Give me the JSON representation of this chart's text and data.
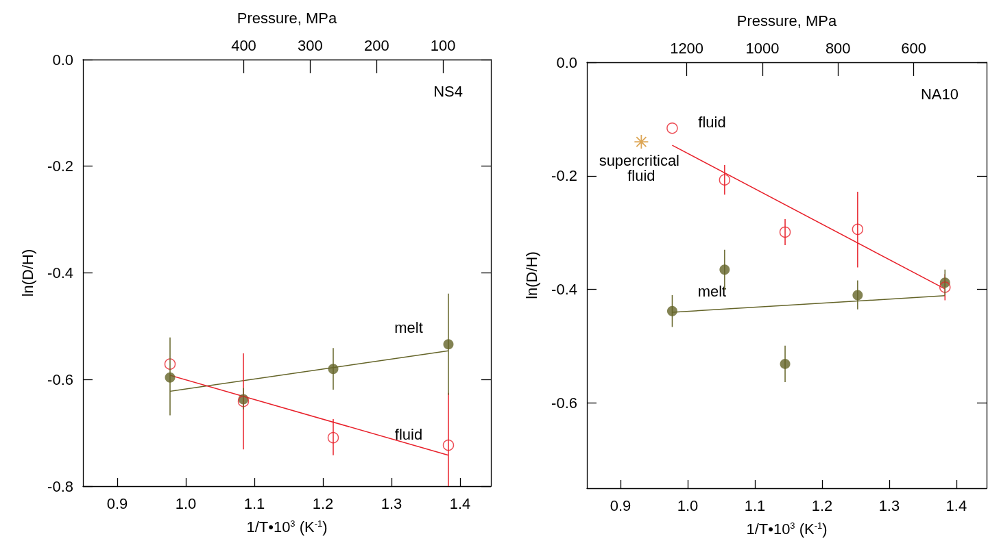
{
  "chart_data": [
    {
      "type": "scatter",
      "title": "NS4",
      "xlabel": "1/T•10$^{3}$ (K$^{-1}$)",
      "ylabel": "ln(D/H)",
      "x2label": "Pressure, MPa",
      "xlim": [
        0.85,
        1.445
      ],
      "xticks": [
        0.9,
        {
          "value": 1.0,
          "label": "1.0"
        },
        1.1,
        1.2,
        1.3,
        1.4
      ],
      "x2lim": [
        642,
        28
      ],
      "x2ticks": [
        400,
        300,
        200,
        100
      ],
      "ylim": [
        -0.8,
        0
      ],
      "yticks": [
        {
          "value": 0,
          "label": "0.0"
        },
        -0.2,
        -0.4,
        -0.6,
        -0.8
      ],
      "grid": false,
      "legend": false,
      "series": [
        {
          "type": "scatter",
          "color": "#646428",
          "marker": "circle",
          "x": [
            0.977,
            1.084,
            1.215,
            1.383
          ],
          "values": [
            -0.596,
            -0.637,
            -0.58,
            -0.534
          ],
          "errors": [
            [
              -0.667,
              -0.521
            ],
            [
              -0.656,
              -0.616
            ],
            [
              -0.619,
              -0.541
            ],
            [
              -0.629,
              -0.439
            ]
          ]
        },
        {
          "type": "scatter",
          "color": "#e8202a",
          "marker": "circle",
          "x": [
            0.977,
            1.084,
            1.215,
            1.383
          ],
          "values": [
            -0.571,
            -0.641,
            -0.709,
            -0.723
          ],
          "errors": [
            null,
            [
              -0.731,
              -0.551
            ],
            [
              -0.742,
              -0.674
            ],
            [
              -0.8,
              -0.625
            ]
          ]
        },
        {
          "type": "line",
          "name": "melt",
          "color": "#646428",
          "marker": "none",
          "line_style": "solid",
          "x": [
            0.977,
            1.383
          ],
          "values": [
            -0.622,
            -0.546
          ]
        },
        {
          "type": "line",
          "name": "fluid",
          "color": "#e8202a",
          "marker": "none",
          "line_style": "solid",
          "x": [
            0.977,
            1.383
          ],
          "values": [
            -0.592,
            -0.742
          ]
        }
      ]
    },
    {
      "type": "scatter",
      "title": "NA10",
      "xlabel": "1/T•10$^{3}$ (K$^{-1}$)",
      "ylabel": "ln(D/H)",
      "x2label": "Pressure, MPa",
      "xlim": [
        0.85,
        1.445
      ],
      "xticks": [
        0.9,
        {
          "value": 1.0,
          "label": "1.0"
        },
        1.1,
        1.2,
        1.3,
        1.4
      ],
      "x2lim": [
        1464,
        407
      ],
      "x2ticks": [
        1200,
        1000,
        800,
        600
      ],
      "ylim": [
        -0.75,
        0
      ],
      "yticks": [
        {
          "value": 0,
          "label": "0.0"
        },
        -0.2,
        -0.4,
        -0.6
      ],
      "grid": false,
      "legend": false,
      "series": [
        {
          "type": "scatter",
          "color": "#646428",
          "marker": "circle",
          "x": [
            0.977,
            1.055,
            1.145,
            1.253,
            1.383
          ],
          "values": [
            -0.438,
            -0.365,
            -0.531,
            -0.41,
            -0.388
          ],
          "errors": [
            [
              -0.466,
              -0.41
            ],
            [
              -0.401,
              -0.33
            ],
            [
              -0.563,
              -0.499
            ],
            [
              -0.435,
              -0.384
            ],
            [
              -0.41,
              -0.365
            ]
          ]
        },
        {
          "type": "scatter",
          "color": "#e8202a",
          "marker": "circle",
          "x": [
            0.977,
            1.055,
            1.145,
            1.253,
            1.383
          ],
          "values": [
            -0.116,
            -0.207,
            -0.299,
            -0.294,
            -0.396
          ],
          "errors": [
            null,
            [
              -0.233,
              -0.181
            ],
            [
              -0.322,
              -0.276
            ],
            [
              -0.361,
              -0.228
            ],
            [
              -0.419,
              -0.373
            ]
          ]
        },
        {
          "type": "line",
          "name": "melt",
          "color": "#646428",
          "marker": "none",
          "line_style": "solid",
          "x": [
            0.977,
            1.383
          ],
          "values": [
            -0.44,
            -0.411
          ]
        },
        {
          "type": "line",
          "name": "fluid",
          "color": "#e8202a",
          "marker": "none",
          "line_style": "solid",
          "x": [
            0.977,
            1.383
          ],
          "values": [
            -0.146,
            -0.399
          ]
        },
        {
          "type": "scatter",
          "color": "#d4902a",
          "marker": "cross",
          "x": [
            0.931
          ],
          "values": [
            -0.14
          ]
        }
      ],
      "annotations": [
        {
          "text": "supercritical fluid",
          "x": 0.931,
          "y": -0.14
        }
      ]
    }
  ]
}
